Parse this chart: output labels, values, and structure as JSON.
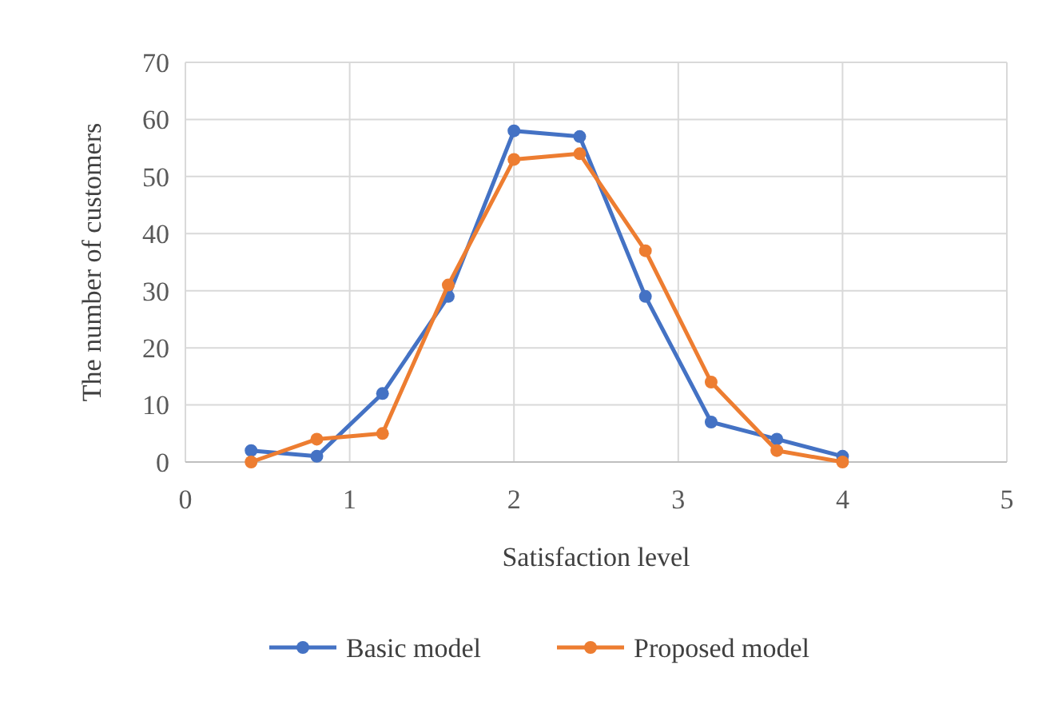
{
  "chart_data": {
    "type": "line",
    "xlabel": "Satisfaction level",
    "ylabel": "The number of customers",
    "x": [
      0.4,
      0.8,
      1.2,
      1.6,
      2,
      2.4,
      2.8,
      3.2,
      3.6,
      4
    ],
    "series": [
      {
        "name": "Basic model",
        "color": "#4472c4",
        "values": [
          2,
          1,
          12,
          29,
          58,
          57,
          29,
          7,
          4,
          1
        ]
      },
      {
        "name": "Proposed model",
        "color": "#ed7d31",
        "values": [
          0,
          4,
          5,
          31,
          53,
          54,
          37,
          14,
          2,
          0
        ]
      }
    ],
    "xlim": [
      0,
      5
    ],
    "xticks": [
      0,
      1,
      2,
      3,
      4,
      5
    ],
    "ylim": [
      0,
      70
    ],
    "yticks": [
      0,
      10,
      20,
      30,
      40,
      50,
      60,
      70
    ],
    "grid": true,
    "legend": "bottom",
    "marker": "circle",
    "line_style": "solid"
  }
}
